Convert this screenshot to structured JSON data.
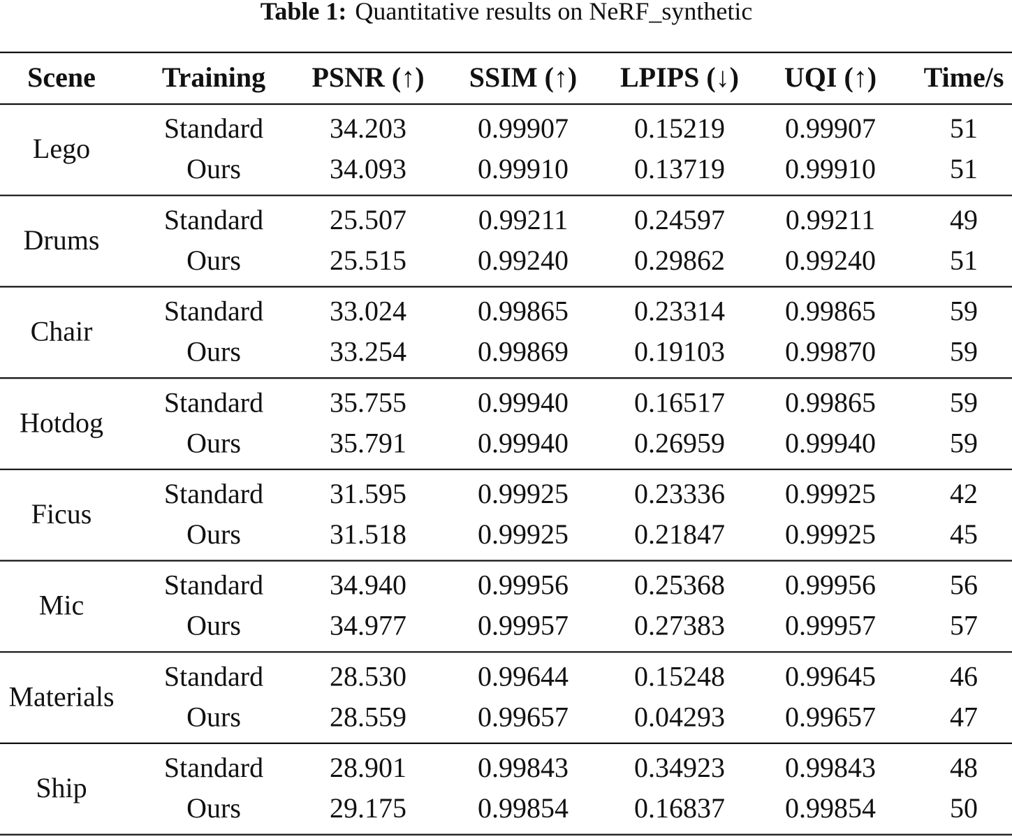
{
  "title": {
    "label": "Table 1:",
    "text": "Quantitative results on NeRF_synthetic"
  },
  "table": {
    "header": [
      "Scene",
      "Training",
      "PSNR (↑)",
      "SSIM (↑)",
      "LPIPS (↓)",
      "UQI (↑)",
      "Time/s"
    ],
    "groups": [
      {
        "scene": "Lego",
        "rows": [
          [
            "Standard",
            "34.203",
            "0.99907",
            "0.15219",
            "0.99907",
            "51"
          ],
          [
            "Ours",
            "34.093",
            "0.99910",
            "0.13719",
            "0.99910",
            "51"
          ]
        ]
      },
      {
        "scene": "Drums",
        "rows": [
          [
            "Standard",
            "25.507",
            "0.99211",
            "0.24597",
            "0.99211",
            "49"
          ],
          [
            "Ours",
            "25.515",
            "0.99240",
            "0.29862",
            "0.99240",
            "51"
          ]
        ]
      },
      {
        "scene": "Chair",
        "rows": [
          [
            "Standard",
            "33.024",
            "0.99865",
            "0.23314",
            "0.99865",
            "59"
          ],
          [
            "Ours",
            "33.254",
            "0.99869",
            "0.19103",
            "0.99870",
            "59"
          ]
        ]
      },
      {
        "scene": "Hotdog",
        "rows": [
          [
            "Standard",
            "35.755",
            "0.99940",
            "0.16517",
            "0.99865",
            "59"
          ],
          [
            "Ours",
            "35.791",
            "0.99940",
            "0.26959",
            "0.99940",
            "59"
          ]
        ]
      },
      {
        "scene": "Ficus",
        "rows": [
          [
            "Standard",
            "31.595",
            "0.99925",
            "0.23336",
            "0.99925",
            "42"
          ],
          [
            "Ours",
            "31.518",
            "0.99925",
            "0.21847",
            "0.99925",
            "45"
          ]
        ]
      },
      {
        "scene": "Mic",
        "rows": [
          [
            "Standard",
            "34.940",
            "0.99956",
            "0.25368",
            "0.99956",
            "56"
          ],
          [
            "Ours",
            "34.977",
            "0.99957",
            "0.27383",
            "0.99957",
            "57"
          ]
        ]
      },
      {
        "scene": "Materials",
        "rows": [
          [
            "Standard",
            "28.530",
            "0.99644",
            "0.15248",
            "0.99645",
            "46"
          ],
          [
            "Ours",
            "28.559",
            "0.99657",
            "0.04293",
            "0.99657",
            "47"
          ]
        ]
      },
      {
        "scene": "Ship",
        "rows": [
          [
            "Standard",
            "28.901",
            "0.99843",
            "0.34923",
            "0.99843",
            "48"
          ],
          [
            "Ours",
            "29.175",
            "0.99854",
            "0.16837",
            "0.99854",
            "50"
          ]
        ]
      }
    ]
  }
}
